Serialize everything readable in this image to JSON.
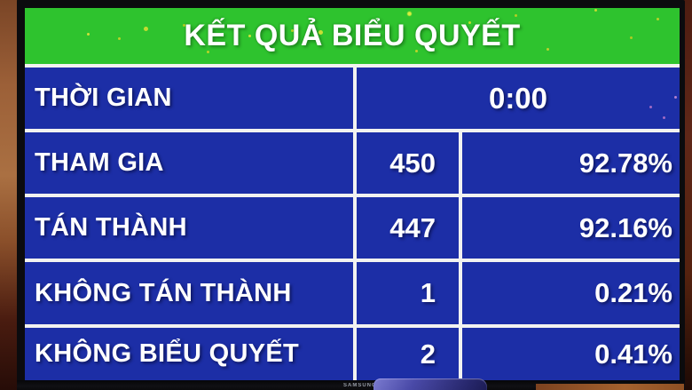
{
  "screen": {
    "title": "KẾT QUẢ BIỂU QUYẾT",
    "rows": [
      {
        "label": "THỜI GIAN",
        "time": "0:00"
      },
      {
        "label": "THAM GIA",
        "count": "450",
        "percent": "92.78%"
      },
      {
        "label": "TÁN THÀNH",
        "count": "447",
        "percent": "92.16%"
      },
      {
        "label": "KHÔNG TÁN THÀNH",
        "count": "1",
        "percent": "0.21%"
      },
      {
        "label": "KHÔNG BIỂU QUYẾT",
        "count": "2",
        "percent": "0.41%"
      }
    ]
  },
  "tv": {
    "brand": "SAMSUNG"
  },
  "theme": {
    "green": "#2ec32e",
    "blue": "#1c2ea6",
    "line_white": "#f2f2f0",
    "text_white": "#ffffff",
    "wall_brown": "#9c6038",
    "bezel_black": "#0b0b0e"
  }
}
